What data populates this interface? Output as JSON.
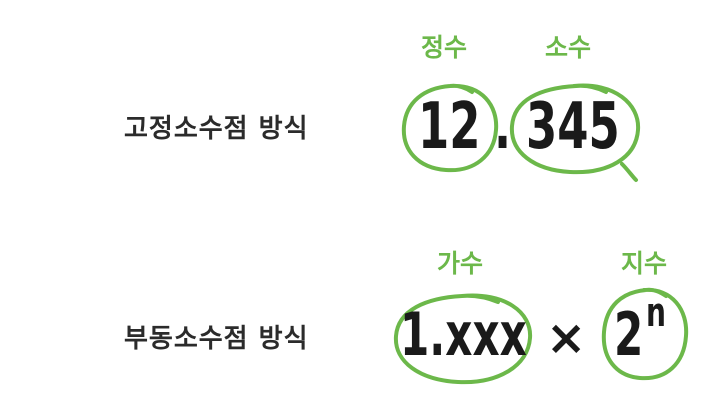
{
  "accent_color": "#6cb84a",
  "ink_color": "#1a1a1a",
  "fixed": {
    "label": "고정소수점 방식",
    "integer_tag": "정수",
    "fraction_tag": "소수",
    "integer_value": "12",
    "point": ".",
    "fraction_value": "345"
  },
  "floating": {
    "label": "부동소수점 방식",
    "mantissa_tag": "가수",
    "exponent_tag": "지수",
    "mantissa_value": "1.xxx",
    "times": "×",
    "base": "2",
    "exponent": "n"
  }
}
